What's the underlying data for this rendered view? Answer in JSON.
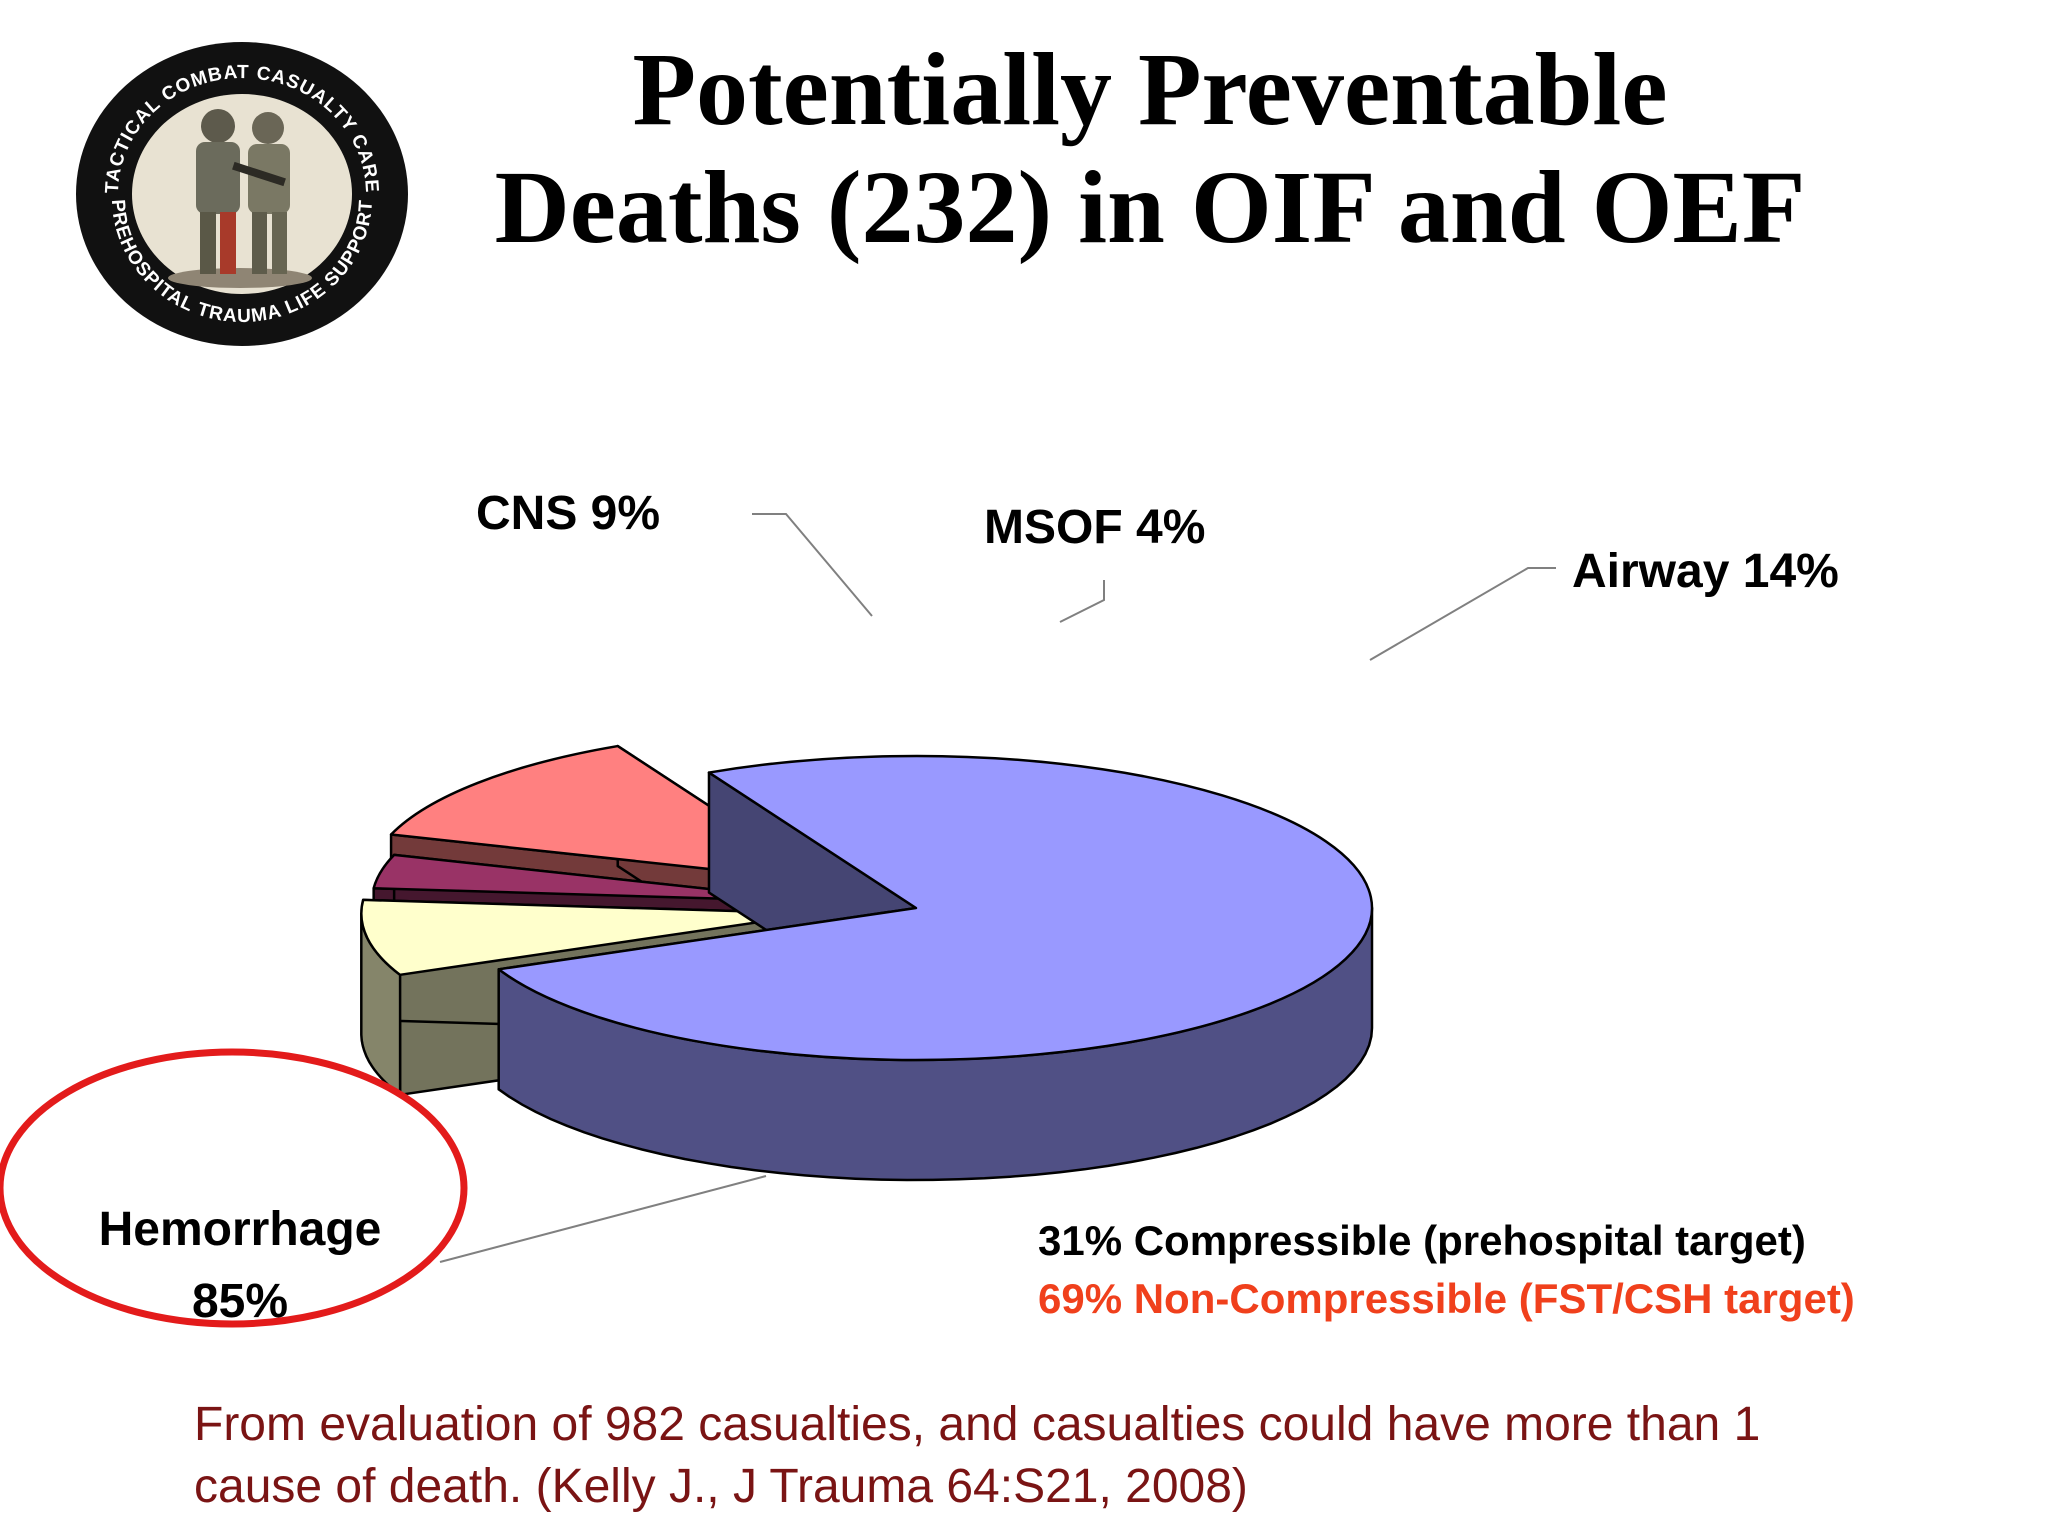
{
  "title": {
    "line1": "Potentially Preventable",
    "line2": "Deaths (232) in OIF and OEF"
  },
  "logo": {
    "ring_top_text": "TACTICAL COMBAT CASUALTY CARE",
    "ring_bottom_text": "PREHOSPITAL TRAUMA LIFE SUPPORT"
  },
  "chart_data": {
    "type": "pie",
    "style": "3d-exploded",
    "title": "",
    "slices": [
      {
        "label": "Hemorrhage",
        "value": 85,
        "display": "85%",
        "color": "#9999ff"
      },
      {
        "label": "CNS",
        "value": 9,
        "display": "9%",
        "color": "#ffffcc"
      },
      {
        "label": "MSOF",
        "value": 4,
        "display": "4%",
        "color": "#993366"
      },
      {
        "label": "Airway",
        "value": 14,
        "display": "14%",
        "color": "#ff8080"
      }
    ],
    "slice_labels": {
      "hemorrhage_line1": "Hemorrhage",
      "hemorrhage_line2": "85%",
      "cns": "CNS 9%",
      "msof": "MSOF 4%",
      "airway": "Airway 14%"
    },
    "highlight": {
      "slice": "Hemorrhage",
      "color": "#e31b1b"
    }
  },
  "breakdown": {
    "line1": "31% Compressible (prehospital target)",
    "line2": "69% Non-Compressible (FST/CSH target)",
    "line2_color": "#f0401c"
  },
  "footnote": {
    "line1": "From evaluation of 982 casualties, and casualties could have more than 1",
    "line2": "cause of death. (Kelly J., J Trauma 64:S21, 2008)"
  }
}
